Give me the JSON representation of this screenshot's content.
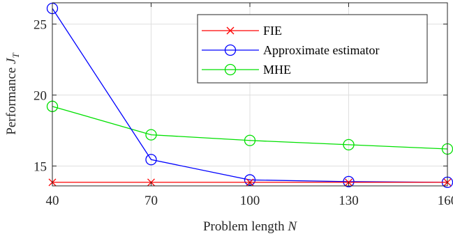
{
  "chart_data": {
    "type": "line",
    "x": [
      40,
      70,
      100,
      130,
      160
    ],
    "xlim": [
      40,
      160
    ],
    "ylim": [
      13.6,
      26.5
    ],
    "xticks": [
      "40",
      "70",
      "100",
      "130",
      "160"
    ],
    "yticks": [
      15,
      20,
      25
    ],
    "ytick_labels": [
      "15",
      "20",
      "25"
    ],
    "xlabel": "Problem length",
    "xlabel_symbol": "N",
    "ylabel": "Performance",
    "ylabel_symbol": "J",
    "ylabel_subscript": "T",
    "grid": true,
    "legend_position": "top-right",
    "series": [
      {
        "name": "FIE",
        "values": [
          13.85,
          13.85,
          13.85,
          13.85,
          13.85
        ],
        "color": "#ff0000",
        "marker": "x"
      },
      {
        "name": "Approximate estimator",
        "values": [
          26.1,
          15.45,
          14.02,
          13.9,
          13.85
        ],
        "color": "#0000ff",
        "marker": "o"
      },
      {
        "name": "MHE",
        "values": [
          19.2,
          17.2,
          16.8,
          16.5,
          16.2
        ],
        "color": "#00e000",
        "marker": "o"
      }
    ]
  }
}
